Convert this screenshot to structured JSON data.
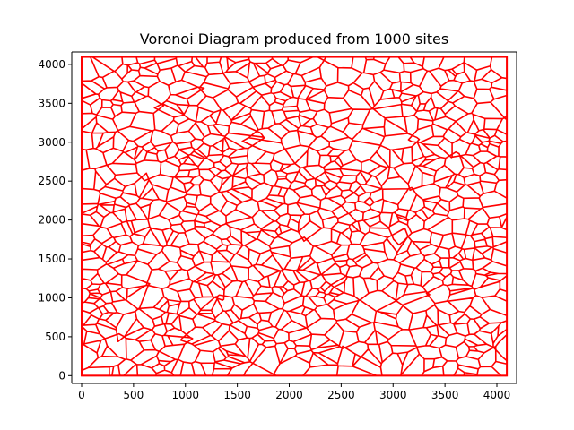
{
  "chart_data": {
    "type": "voronoi",
    "title": "Voronoi Diagram produced from 1000 sites",
    "sites": 1000,
    "xlabel": "",
    "ylabel": "",
    "xlim": [
      -95,
      4190
    ],
    "ylim": [
      -100,
      4160
    ],
    "domain": [
      0,
      4096
    ],
    "x_ticks": [
      0,
      500,
      1000,
      1500,
      2000,
      2500,
      3000,
      3500,
      4000
    ],
    "y_ticks": [
      0,
      500,
      1000,
      1500,
      2000,
      2500,
      3000,
      3500,
      4000
    ],
    "x_tick_labels": [
      "0",
      "500",
      "1000",
      "1500",
      "2000",
      "2500",
      "3000",
      "3500",
      "4000"
    ],
    "y_tick_labels": [
      "0",
      "500",
      "1000",
      "1500",
      "2000",
      "2500",
      "3000",
      "3500",
      "4000"
    ],
    "grid": false,
    "edge_color": "#ff0000"
  }
}
